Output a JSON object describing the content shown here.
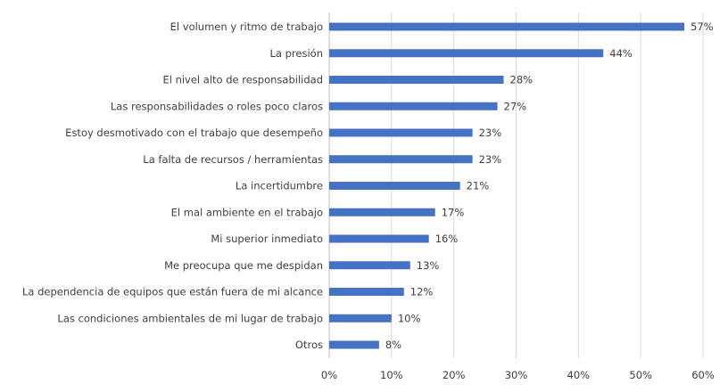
{
  "chart_data": {
    "type": "bar",
    "orientation": "horizontal",
    "title": "",
    "xlabel": "",
    "ylabel": "",
    "xlim": [
      0,
      60
    ],
    "grid": true,
    "bar_color": "#4472C4",
    "categories": [
      "El volumen y ritmo de trabajo",
      "La presión",
      "El nivel alto de responsabilidad",
      "Las responsabilidades o roles poco claros",
      "Estoy desmotivado con el trabajo que desempeño",
      "La falta de recursos / herramientas",
      "La incertidumbre",
      "El mal ambiente en el trabajo",
      "Mi superior inmediato",
      "Me preocupa que me despidan",
      "La dependencia de equipos que están fuera de mi alcance",
      "Las condiciones ambientales de mi lugar de trabajo",
      "Otros"
    ],
    "values": [
      57,
      44,
      28,
      27,
      23,
      23,
      21,
      17,
      16,
      13,
      12,
      10,
      8
    ],
    "data_labels": [
      "57%",
      "44%",
      "28%",
      "27%",
      "23%",
      "23%",
      "21%",
      "17%",
      "16%",
      "13%",
      "12%",
      "10%",
      "8%"
    ],
    "x_ticks": [
      0,
      10,
      20,
      30,
      40,
      50,
      60
    ],
    "x_tick_labels": [
      "0%",
      "10%",
      "20%",
      "30%",
      "40%",
      "50%",
      "60%"
    ]
  }
}
